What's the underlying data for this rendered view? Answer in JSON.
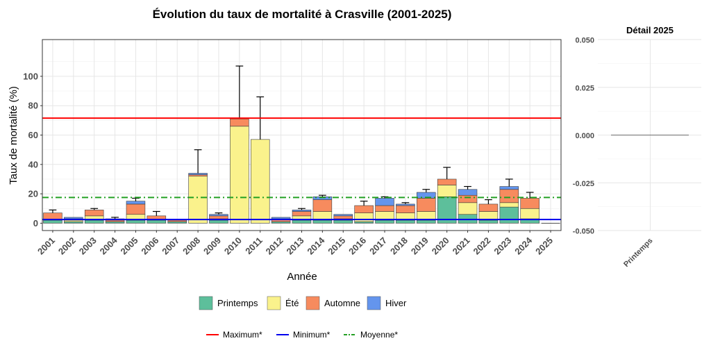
{
  "colors": {
    "printemps": "#5dbf9b",
    "ete": "#faf28c",
    "automne": "#f78b5e",
    "hiver": "#6495ed",
    "max_line": "#ff0000",
    "min_line": "#0000ee",
    "mean_line": "#22a022",
    "panel_bg": "#ffffff",
    "grid": "#e6e6e6",
    "bar_stroke": "#3d3d3d"
  },
  "legend": {
    "seasons": [
      "Printemps",
      "Été",
      "Automne",
      "Hiver"
    ],
    "lines": [
      "Maximum*",
      "Minimum*",
      "Moyenne*"
    ]
  },
  "chart_data": [
    {
      "type": "bar",
      "stacked": true,
      "title": "Évolution du taux de mortalité à Crasville (2001-2025)",
      "xlabel": "Année",
      "ylabel": "Taux de mortalité (%)",
      "ylim": [
        -5,
        125
      ],
      "yticks": [
        0,
        20,
        40,
        60,
        80,
        100
      ],
      "grid": true,
      "legend_position": "bottom",
      "categories": [
        "2001",
        "2002",
        "2003",
        "2004",
        "2005",
        "2006",
        "2007",
        "2008",
        "2009",
        "2010",
        "2011",
        "2012",
        "2013",
        "2014",
        "2015",
        "2016",
        "2017",
        "2018",
        "2019",
        "2020",
        "2021",
        "2022",
        "2023",
        "2024",
        "2025"
      ],
      "series": [
        {
          "name": "Printemps",
          "values": [
            2,
            1,
            2,
            1,
            2,
            2,
            1,
            0,
            2,
            0,
            0,
            1,
            2,
            2,
            2,
            1,
            2,
            2,
            2,
            18,
            6,
            2,
            11,
            3,
            0
          ]
        },
        {
          "name": "Été",
          "values": [
            0,
            1,
            3,
            0,
            4,
            0,
            0,
            32,
            1,
            66,
            57,
            0,
            3,
            6,
            1,
            6,
            6,
            5,
            6,
            8,
            8,
            6,
            3,
            7,
            0
          ]
        },
        {
          "name": "Automne",
          "values": [
            5,
            1,
            4,
            1,
            7,
            3,
            1,
            1,
            2,
            5,
            0,
            2,
            3,
            8,
            2,
            5,
            4,
            5,
            9,
            4,
            5,
            5,
            9,
            7,
            0
          ]
        },
        {
          "name": "Hiver",
          "values": [
            0,
            1,
            0,
            1,
            2,
            0,
            0,
            1,
            1,
            0,
            0,
            1,
            1,
            2,
            1,
            0,
            5,
            1,
            4,
            0,
            4,
            0,
            2,
            0,
            0
          ]
        }
      ],
      "error_upper": [
        9,
        4,
        10,
        4,
        17,
        8,
        2,
        50,
        7,
        107,
        86,
        4,
        10,
        19,
        6,
        15,
        18,
        14,
        23,
        38,
        25,
        16,
        30,
        21,
        0
      ],
      "reference_lines": [
        {
          "name": "Maximum*",
          "value": 71.5,
          "style": "solid"
        },
        {
          "name": "Minimum*",
          "value": 2.5,
          "style": "solid"
        },
        {
          "name": "Moyenne*",
          "value": 17.5,
          "style": "dotdash"
        }
      ]
    },
    {
      "type": "bar",
      "title": "Détail 2025",
      "categories": [
        "Printemps"
      ],
      "values": [
        0
      ],
      "ylim": [
        -0.05,
        0.05
      ],
      "yticks": [
        -0.05,
        -0.025,
        0,
        0.025,
        0.05
      ],
      "ytick_labels": [
        "-0.050",
        "-0.025",
        "0.000",
        "0.025",
        "0.050"
      ],
      "grid": true
    }
  ]
}
